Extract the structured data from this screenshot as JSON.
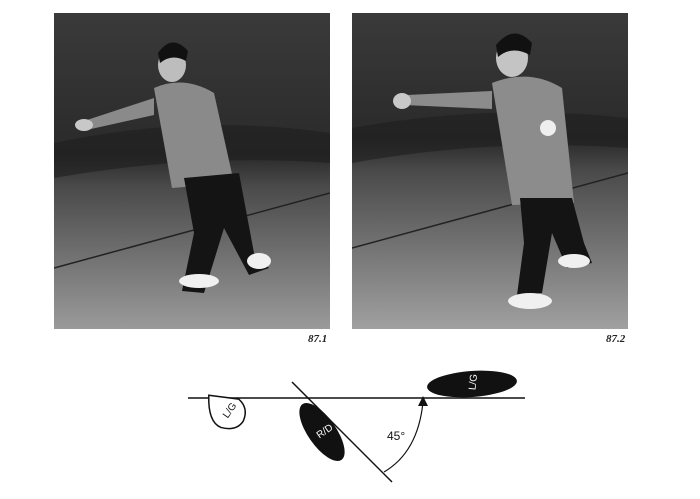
{
  "figures": [
    {
      "caption": "87.1"
    },
    {
      "caption": "87.2"
    }
  ],
  "diagram": {
    "angle_label": "45°",
    "feet": [
      {
        "label": "L/G"
      },
      {
        "label": "R/D"
      },
      {
        "label": "L/G"
      }
    ]
  }
}
